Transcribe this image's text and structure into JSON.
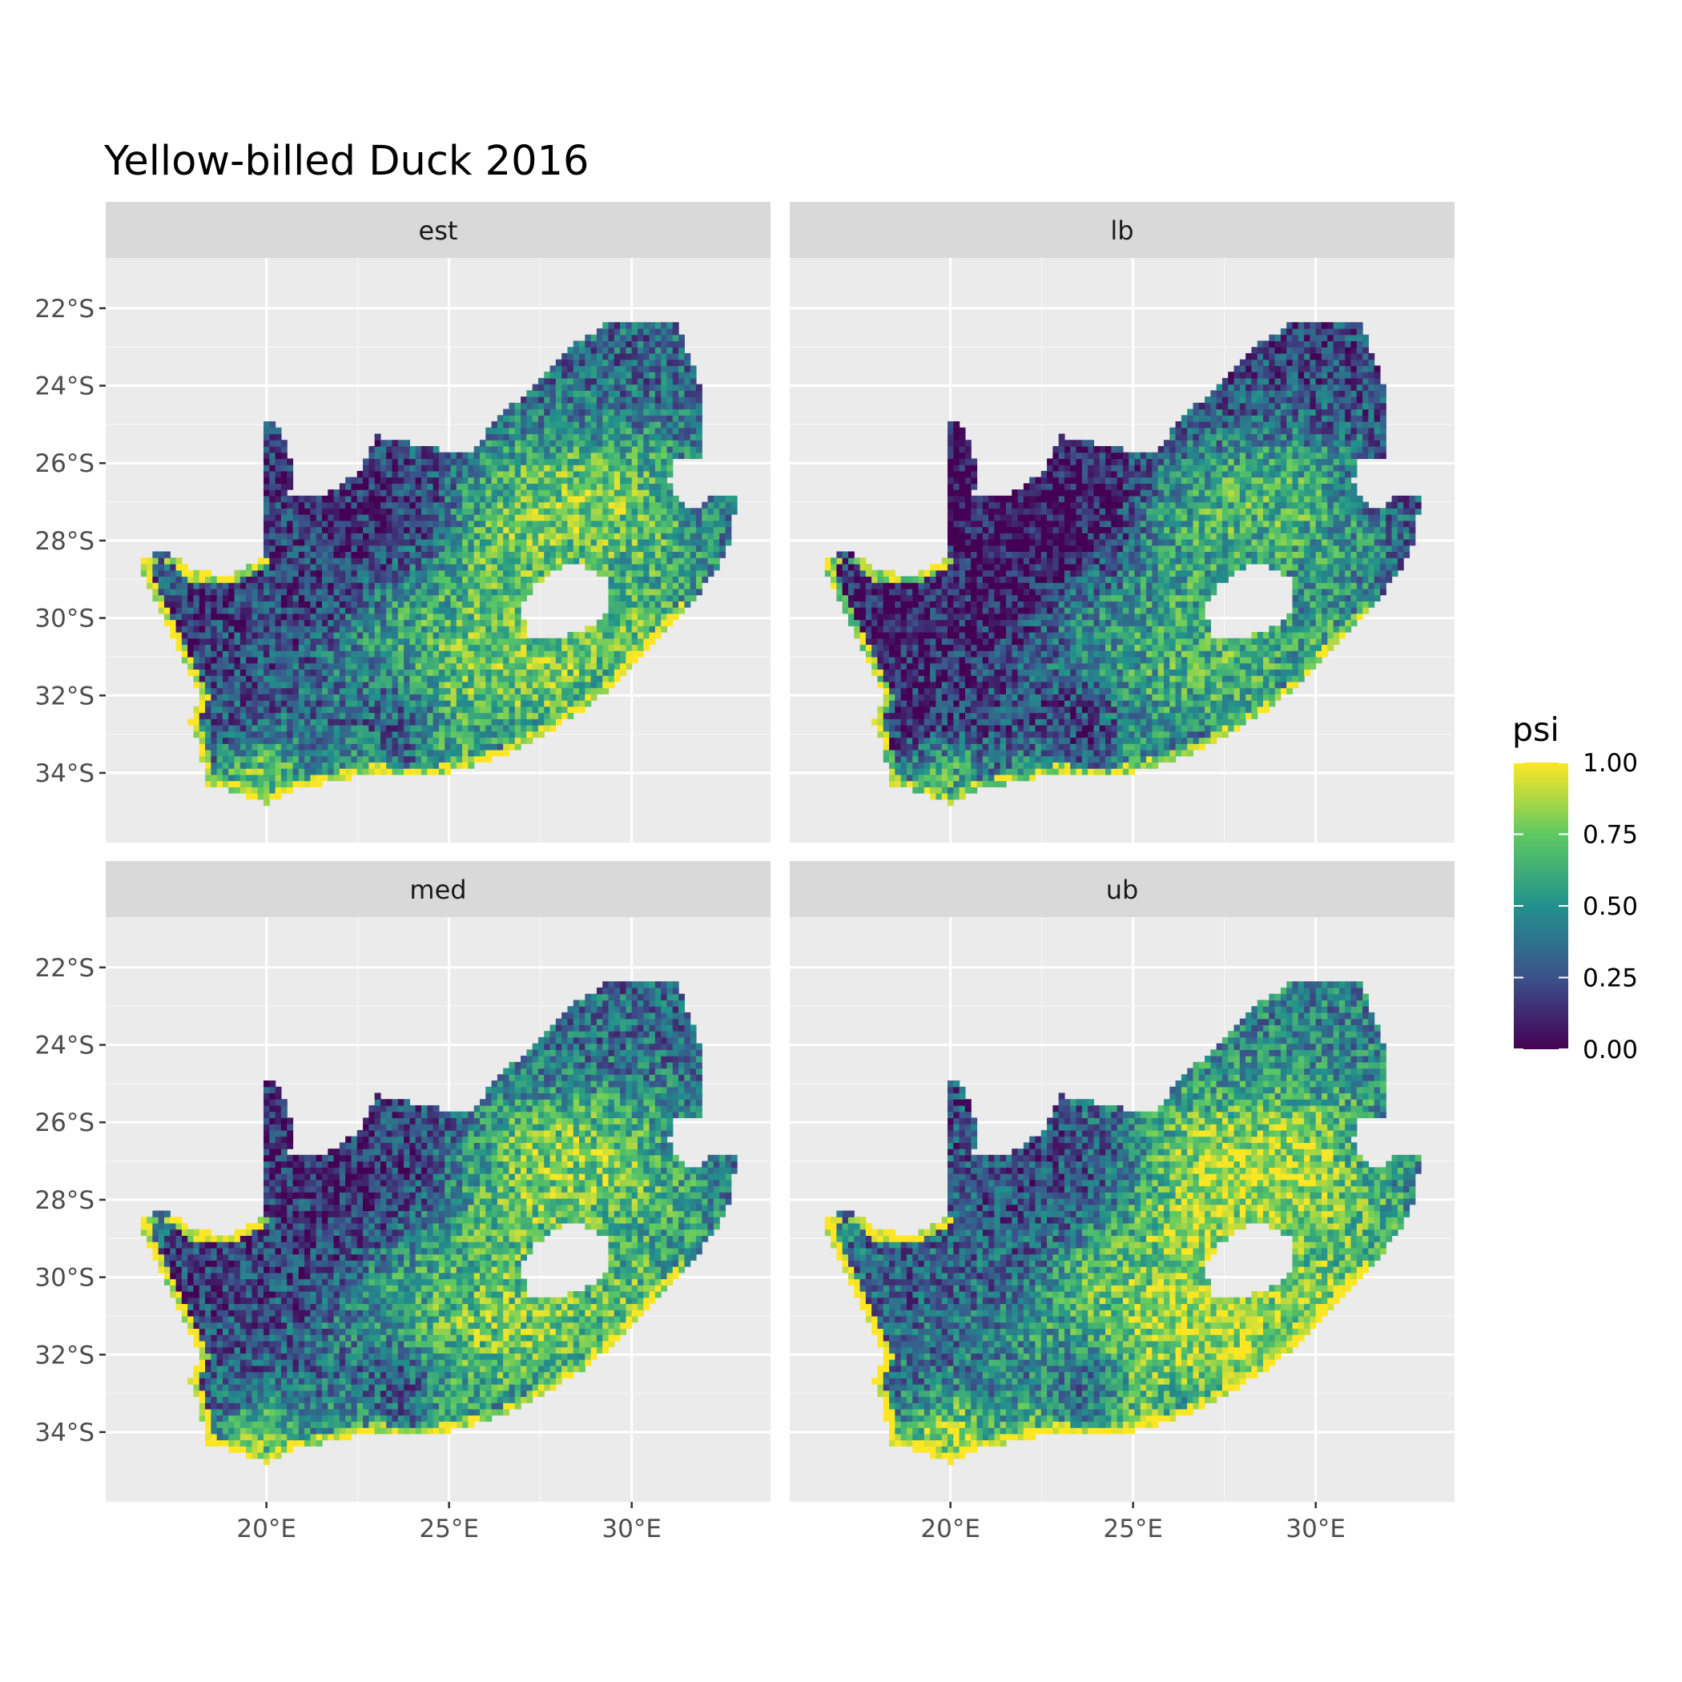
{
  "chart_data": {
    "type": "heatmap",
    "title": "Yellow-billed Duck 2016",
    "xlabel": "",
    "ylabel": "",
    "panels": [
      "est",
      "lb",
      "med",
      "ub"
    ],
    "x_ticks": [
      20,
      25,
      30
    ],
    "x_tick_labels": [
      "20°E",
      "25°E",
      "30°E"
    ],
    "y_ticks": [
      -22,
      -24,
      -26,
      -28,
      -30,
      -32,
      -34
    ],
    "y_tick_labels": [
      "22°S",
      "24°S",
      "26°S",
      "28°S",
      "30°S",
      "32°S",
      "34°S"
    ],
    "xlim": [
      15.6,
      33.8
    ],
    "ylim": [
      -35.8,
      -20.7
    ],
    "legend": {
      "title": "psi",
      "breaks": [
        0,
        0.25,
        0.5,
        0.75,
        1
      ],
      "labels": [
        "0.00",
        "0.25",
        "0.50",
        "0.75",
        "1.00"
      ],
      "palette": [
        "#440154",
        "#3b528b",
        "#21918c",
        "#5ec962",
        "#fde725"
      ],
      "position": "right"
    },
    "grid": true,
    "panel_background": "#ebebeb",
    "strip_background": "#d9d9d9",
    "region": "South Africa",
    "outline_lonlat": [
      [
        16.5,
        -28.6
      ],
      [
        17.2,
        -28.2
      ],
      [
        18.0,
        -28.8
      ],
      [
        19.0,
        -28.9
      ],
      [
        19.9,
        -28.4
      ],
      [
        19.9,
        -24.8
      ],
      [
        20.3,
        -25.0
      ],
      [
        20.8,
        -26.3
      ],
      [
        20.6,
        -26.8
      ],
      [
        21.7,
        -26.8
      ],
      [
        22.6,
        -26.2
      ],
      [
        23.0,
        -25.3
      ],
      [
        24.0,
        -25.5
      ],
      [
        25.5,
        -25.8
      ],
      [
        26.4,
        -24.8
      ],
      [
        27.3,
        -24.0
      ],
      [
        28.3,
        -23.0
      ],
      [
        29.3,
        -22.4
      ],
      [
        30.3,
        -22.3
      ],
      [
        31.2,
        -22.4
      ],
      [
        31.6,
        -23.3
      ],
      [
        32.0,
        -24.5
      ],
      [
        32.0,
        -25.9
      ],
      [
        31.2,
        -25.9
      ],
      [
        31.0,
        -26.5
      ],
      [
        31.6,
        -27.3
      ],
      [
        32.1,
        -26.9
      ],
      [
        32.9,
        -26.9
      ],
      [
        32.6,
        -28.3
      ],
      [
        31.8,
        -29.4
      ],
      [
        31.0,
        -30.3
      ],
      [
        30.2,
        -31.1
      ],
      [
        29.3,
        -31.9
      ],
      [
        28.3,
        -32.6
      ],
      [
        26.9,
        -33.4
      ],
      [
        25.7,
        -33.8
      ],
      [
        24.5,
        -34.1
      ],
      [
        23.0,
        -34.0
      ],
      [
        22.0,
        -34.2
      ],
      [
        20.8,
        -34.4
      ],
      [
        20.0,
        -34.8
      ],
      [
        19.2,
        -34.5
      ],
      [
        18.4,
        -34.3
      ],
      [
        18.3,
        -33.9
      ],
      [
        18.1,
        -33.2
      ],
      [
        17.9,
        -32.7
      ],
      [
        18.2,
        -32.0
      ],
      [
        17.6,
        -30.9
      ],
      [
        17.2,
        -30.0
      ]
    ],
    "lesotho_lonlat": [
      [
        27.0,
        -29.6
      ],
      [
        27.4,
        -29.1
      ],
      [
        28.0,
        -28.7
      ],
      [
        28.6,
        -28.6
      ],
      [
        29.3,
        -29.0
      ],
      [
        29.4,
        -29.7
      ],
      [
        29.1,
        -30.1
      ],
      [
        28.6,
        -30.3
      ],
      [
        28.2,
        -30.5
      ],
      [
        27.7,
        -30.6
      ],
      [
        27.2,
        -30.5
      ],
      [
        27.0,
        -30.0
      ]
    ],
    "psi_zones": [
      {
        "lon": 29.2,
        "lat": -26.8,
        "psi": 0.95,
        "r": 1.9
      },
      {
        "lon": 27.5,
        "lat": -27.3,
        "psi": 0.88,
        "r": 1.6
      },
      {
        "lon": 27.8,
        "lat": -31.2,
        "psi": 0.95,
        "r": 1.4
      },
      {
        "lon": 25.8,
        "lat": -31.3,
        "psi": 0.9,
        "r": 1.4
      },
      {
        "lon": 26.3,
        "lat": -29.0,
        "psi": 0.82,
        "r": 1.3
      },
      {
        "lon": 24.1,
        "lat": -30.2,
        "psi": 0.72,
        "r": 1.3
      },
      {
        "lon": 30.8,
        "lat": -28.6,
        "psi": 0.7,
        "r": 1.1
      },
      {
        "lon": 30.2,
        "lat": -30.7,
        "psi": 0.9,
        "r": 1.0
      },
      {
        "lon": 29.8,
        "lat": -24.2,
        "psi": 0.3,
        "r": 1.5
      },
      {
        "lon": 27.8,
        "lat": -24.3,
        "psi": 0.35,
        "r": 1.3
      },
      {
        "lon": 22.2,
        "lat": -27.3,
        "psi": 0.05,
        "r": 2.1
      },
      {
        "lon": 20.4,
        "lat": -26.0,
        "psi": 0.05,
        "r": 1.0
      },
      {
        "lon": 20.2,
        "lat": -29.6,
        "psi": 0.18,
        "r": 1.7
      },
      {
        "lon": 18.2,
        "lat": -30.2,
        "psi": 0.12,
        "r": 1.2
      },
      {
        "lon": 23.2,
        "lat": -33.2,
        "psi": 0.2,
        "r": 1.3
      },
      {
        "lon": 19.2,
        "lat": -32.6,
        "psi": 0.25,
        "r": 1.0
      },
      {
        "lon": 22.6,
        "lat": -31.3,
        "psi": 0.5,
        "r": 1.0
      },
      {
        "lon": 19.8,
        "lat": -34.1,
        "psi": 0.95,
        "r": 0.9
      },
      {
        "lon": 22.5,
        "lat": -34.0,
        "psi": 0.9,
        "r": 0.9
      },
      {
        "lon": 25.0,
        "lat": -33.7,
        "psi": 0.8,
        "r": 0.8
      },
      {
        "lon": 31.5,
        "lat": -26.5,
        "psi": 0.35,
        "r": 0.7
      }
    ]
  }
}
